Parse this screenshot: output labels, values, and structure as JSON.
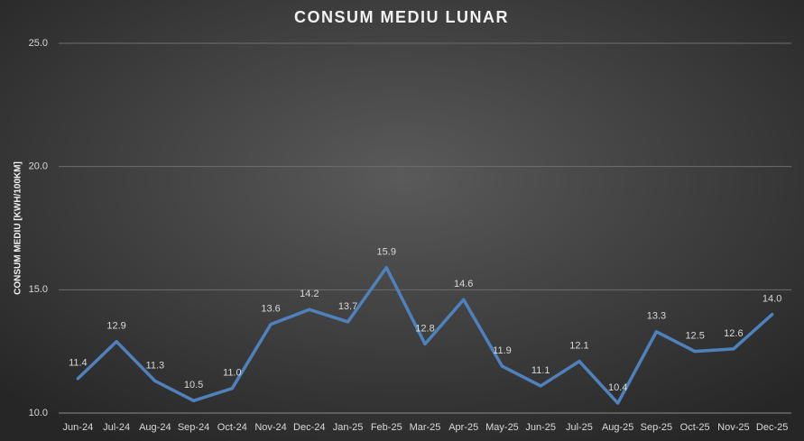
{
  "chart_data": {
    "type": "line",
    "title": "CONSUM MEDIU LUNAR",
    "y_label": "CONSUM MEDIU [KWH/100KM]",
    "categories": [
      "Jun-24",
      "Jul-24",
      "Aug-24",
      "Sep-24",
      "Oct-24",
      "Nov-24",
      "Dec-24",
      "Jan-25",
      "Feb-25",
      "Mar-25",
      "Apr-25",
      "May-25",
      "Jun-25",
      "Jul-25",
      "Aug-25",
      "Sep-25",
      "Oct-25",
      "Nov-25",
      "Dec-25"
    ],
    "series": [
      {
        "color": "#4f81bd",
        "values": [
          11.4,
          12.9,
          11.3,
          10.5,
          11.0,
          13.6,
          14.2,
          13.7,
          15.9,
          12.8,
          14.6,
          11.9,
          11.1,
          12.1,
          10.4,
          13.3,
          12.5,
          12.6,
          14.0
        ],
        "value_labels": [
          "11.4",
          "12.9",
          "11.3",
          "10.5",
          "11.0",
          "13.6",
          "14.2",
          "13.7",
          "15.9",
          "12.8",
          "14.6",
          "11.9",
          "11.1",
          "12.1",
          "10.4",
          "13.3",
          "12.5",
          "12.6",
          "14.0"
        ]
      }
    ],
    "ylim": [
      10,
      25
    ],
    "yticks": [
      {
        "value": 10,
        "label": "10.0"
      },
      {
        "value": 15,
        "label": "15.0"
      },
      {
        "value": 20,
        "label": "20.0"
      },
      {
        "value": 25,
        "label": "25.0"
      }
    ],
    "grid": true
  }
}
